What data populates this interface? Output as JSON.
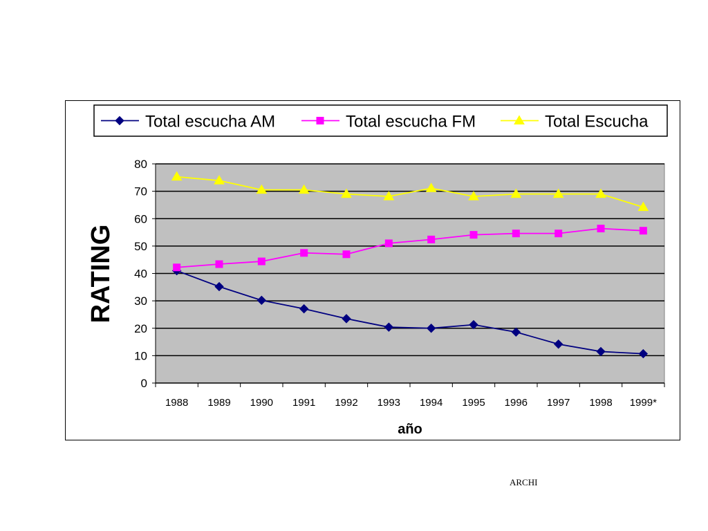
{
  "chart_data": {
    "type": "line",
    "title": "",
    "xlabel": "año",
    "ylabel": "RATING",
    "categories": [
      "1988",
      "1989",
      "1990",
      "1991",
      "1992",
      "1993",
      "1994",
      "1995",
      "1996",
      "1997",
      "1998",
      "1999*"
    ],
    "ylim": [
      0,
      80
    ],
    "yticks": [
      "0",
      "10",
      "20",
      "30",
      "40",
      "50",
      "60",
      "70",
      "80"
    ],
    "grid": true,
    "legend_position": "top",
    "plot_background": "#C0C0C0",
    "series": [
      {
        "name": "Total escucha AM",
        "color": "#000080",
        "marker": "diamond",
        "values": [
          41.0,
          35.2,
          30.2,
          27.1,
          23.5,
          20.4,
          20.0,
          21.3,
          18.6,
          14.2,
          11.5,
          10.7
        ]
      },
      {
        "name": "Total escucha FM",
        "color": "#FF00FF",
        "marker": "square",
        "values": [
          42.2,
          43.4,
          44.4,
          47.5,
          47.0,
          51.0,
          52.4,
          54.1,
          54.6,
          54.6,
          56.4,
          55.6
        ]
      },
      {
        "name": "Total Escucha",
        "color": "#FFFF00",
        "marker": "triangle",
        "values": [
          75.3,
          73.9,
          70.5,
          70.5,
          69.0,
          68.1,
          71.1,
          68.1,
          69.0,
          69.0,
          69.0,
          64.2
        ]
      }
    ]
  },
  "footer": {
    "text": "ARCHI"
  }
}
